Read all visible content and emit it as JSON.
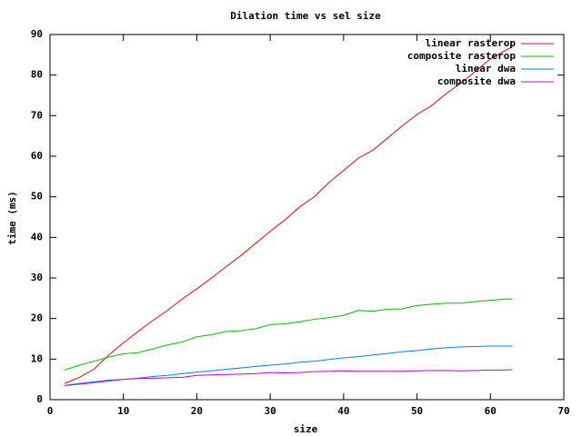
{
  "chart_data": {
    "type": "line",
    "title": "Dilation time vs sel size",
    "xlabel": "size",
    "ylabel": "time (ms)",
    "x": [
      2,
      4,
      6,
      8,
      10,
      12,
      14,
      16,
      18,
      20,
      22,
      24,
      26,
      28,
      30,
      32,
      34,
      36,
      38,
      40,
      42,
      44,
      46,
      48,
      50,
      52,
      54,
      56,
      58,
      60,
      62,
      63
    ],
    "series": [
      {
        "name": "linear rasterop",
        "color": "#ff0000",
        "values": [
          4,
          5.5,
          7.5,
          11,
          14,
          16.8,
          19.5,
          22,
          24.8,
          27.3,
          30,
          32.8,
          35.5,
          38.5,
          41.5,
          44.3,
          47.5,
          50,
          53.5,
          56.5,
          59.5,
          61.5,
          64.5,
          67.5,
          70.3,
          72.5,
          75.5,
          78,
          81,
          84,
          86,
          87
        ]
      },
      {
        "name": "composite rasterop",
        "color": "#00c000",
        "values": [
          7.3,
          8.5,
          9.5,
          10.5,
          11.3,
          11.6,
          12.5,
          13.5,
          14.2,
          15.5,
          16,
          16.8,
          17,
          17.5,
          18.5,
          18.7,
          19.2,
          19.8,
          20.2,
          20.8,
          22,
          21.8,
          22.3,
          22.4,
          23.2,
          23.5,
          23.8,
          23.8,
          24.2,
          24.5,
          24.8,
          24.8
        ]
      },
      {
        "name": "linear dwa",
        "color": "#0080ff",
        "values": [
          3.5,
          4,
          4.4,
          4.8,
          5,
          5.3,
          5.7,
          6,
          6.4,
          6.8,
          7.1,
          7.5,
          7.8,
          8.2,
          8.5,
          8.8,
          9.2,
          9.5,
          9.9,
          10.3,
          10.6,
          11,
          11.4,
          11.8,
          12.1,
          12.5,
          12.8,
          13,
          13.1,
          13.2,
          13.2,
          13.2
        ]
      },
      {
        "name": "composite dwa",
        "color": "#c000ff",
        "values": [
          3.5,
          3.8,
          4.2,
          4.6,
          5,
          5.2,
          5.3,
          5.4,
          5.5,
          6,
          6.1,
          6.2,
          6.3,
          6.4,
          6.7,
          6.6,
          6.7,
          6.9,
          7,
          7.1,
          7,
          7,
          7,
          7,
          7.1,
          7.2,
          7.2,
          7.1,
          7.2,
          7.3,
          7.3,
          7.4
        ]
      }
    ],
    "xlim": [
      0,
      70
    ],
    "xticks": [
      0,
      10,
      20,
      30,
      40,
      50,
      60,
      70
    ],
    "ylim": [
      0,
      90
    ],
    "yticks": [
      0,
      10,
      20,
      30,
      40,
      50,
      60,
      70,
      80,
      90
    ],
    "legend": "top-right"
  }
}
